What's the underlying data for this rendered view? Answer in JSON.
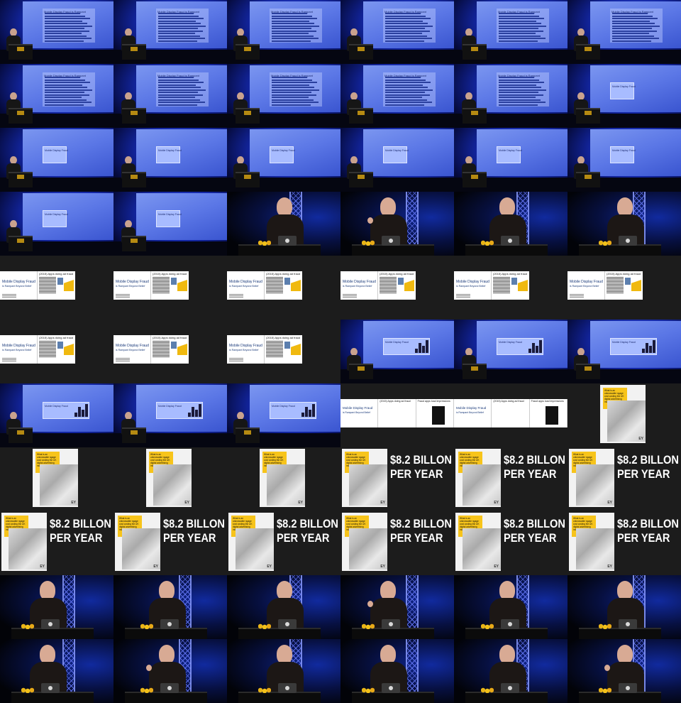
{
  "slides": {
    "dense_title": "Mobile Display Fraud is Rampant",
    "small_slide_label": "Mobile Display Fraud",
    "fraud_title": "Mobile Display Fraud",
    "fraud_subtitle": "is Rampant Beyond Belief",
    "apps_header": "(2015) Apps doing ad fraud",
    "fraud_apps_header": "Fraud apps load impressions",
    "ey_question": "What is an unknowable ngage cost costing the UK digital advertising industry?",
    "ey_logo": "EY",
    "big_line1": "$8.2 BILLON",
    "big_line2": "PER YEAR"
  },
  "cells": [
    "stage-dense",
    "stage-dense",
    "stage-dense",
    "stage-dense",
    "stage-dense",
    "stage-dense",
    "stage-dense",
    "stage-dense",
    "stage-dense",
    "stage-dense",
    "stage-dense",
    "stage-small",
    "stage-small",
    "stage-small",
    "stage-small",
    "stage-small",
    "stage-small",
    "stage-small",
    "stage-small",
    "stage-small",
    "close",
    "close",
    "close",
    "close",
    "fraud",
    "fraud",
    "fraud",
    "fraud",
    "fraud",
    "fraud",
    "fraud",
    "fraud",
    "fraud",
    "stage-chart",
    "stage-chart",
    "stage-chart",
    "stage-chart",
    "stage-chart",
    "stage-chart",
    "fraud2",
    "fraud2",
    "ey-poster",
    "ey-poster",
    "ey-poster",
    "ey-poster",
    "ey-big",
    "ey-big",
    "ey-big",
    "ey-big",
    "ey-big",
    "ey-big",
    "ey-big",
    "ey-big",
    "ey-big",
    "close",
    "close",
    "close",
    "close",
    "close",
    "close",
    "close",
    "close",
    "close",
    "close",
    "close",
    "close"
  ]
}
